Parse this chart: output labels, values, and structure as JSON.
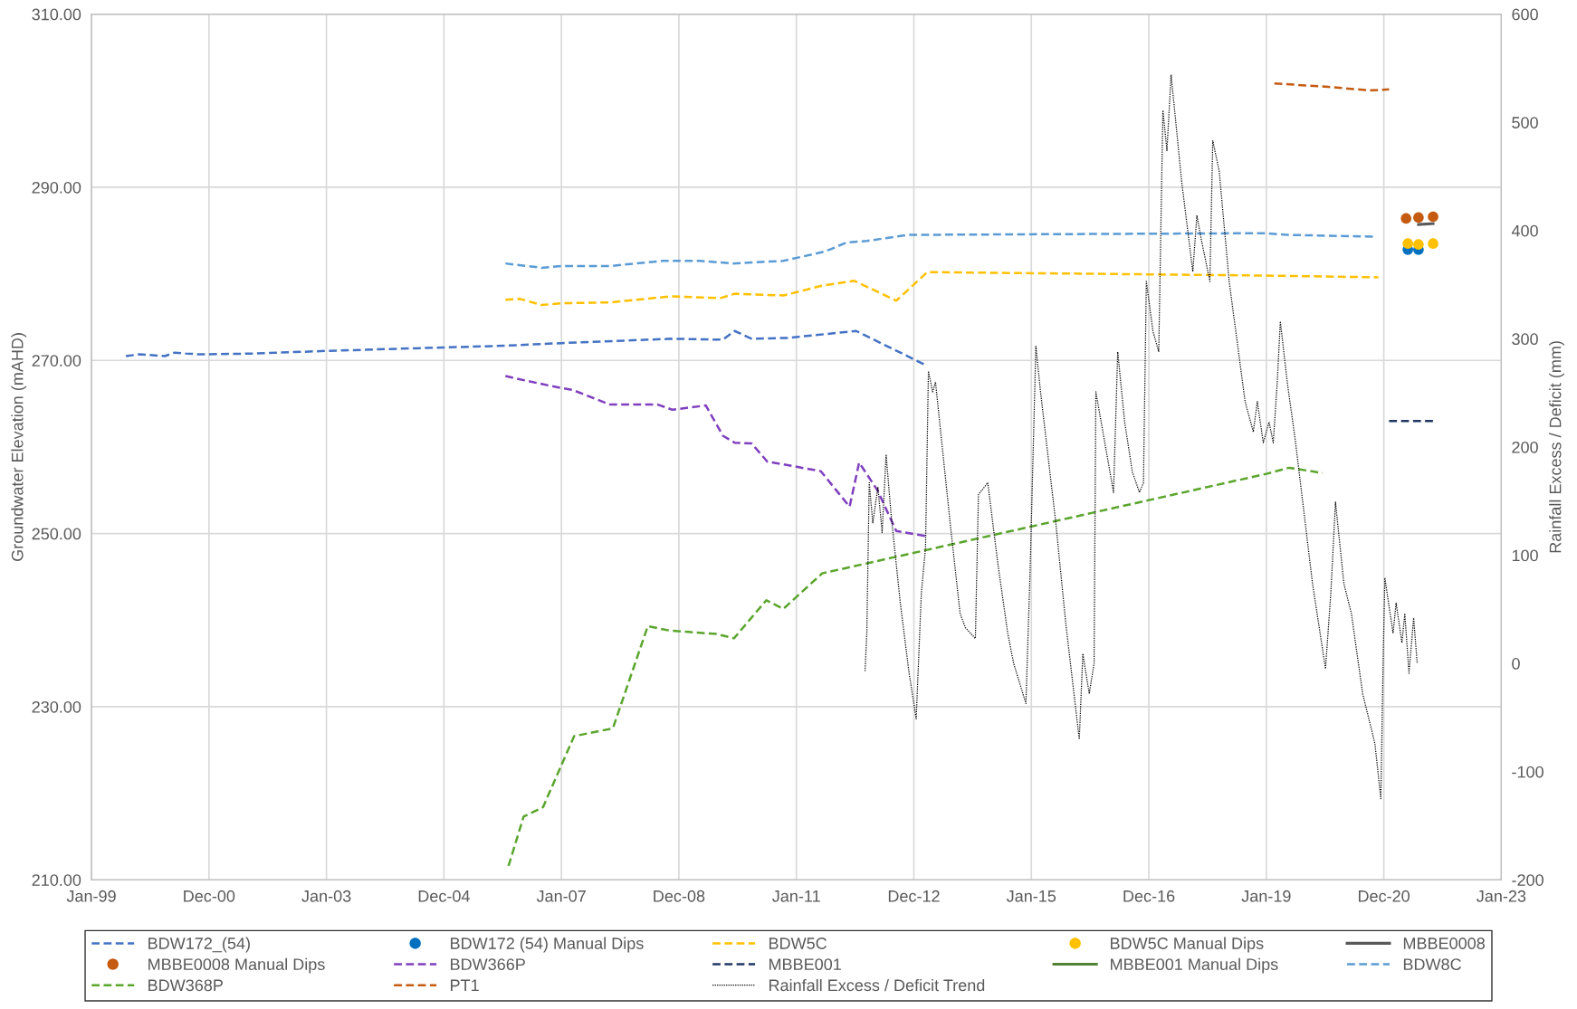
{
  "chart_data": {
    "type": "line",
    "xlabel": null,
    "ylabel": "Groundwater Elevation (mAHD)",
    "y2label": "Rainfall Excess / Deficit (mm)",
    "xlim": [
      "1999-01-01",
      "2023-01-01"
    ],
    "xticks": [
      {
        "value": "1999-01-01",
        "label": "Jan-99"
      },
      {
        "value": "2000-12-31T12:00",
        "label": "Dec-00"
      },
      {
        "value": "2003-01-01",
        "label": "Jan-03"
      },
      {
        "value": "2004-12-31T12:00",
        "label": "Dec-04"
      },
      {
        "value": "2007-01-01",
        "label": "Jan-07"
      },
      {
        "value": "2008-12-31T12:00",
        "label": "Dec-08"
      },
      {
        "value": "2011-01-01",
        "label": "Jan-11"
      },
      {
        "value": "2012-12-31T12:00",
        "label": "Dec-12"
      },
      {
        "value": "2015-01-01",
        "label": "Jan-15"
      },
      {
        "value": "2016-12-31T12:00",
        "label": "Dec-16"
      },
      {
        "value": "2019-01-01",
        "label": "Jan-19"
      },
      {
        "value": "2020-12-31T12:00",
        "label": "Dec-20"
      },
      {
        "value": "2023-01-01",
        "label": "Jan-23"
      }
    ],
    "ylim": [
      210,
      310
    ],
    "yticks": [
      {
        "value": 210,
        "label": "210.00"
      },
      {
        "value": 230,
        "label": "230.00"
      },
      {
        "value": 250,
        "label": "250.00"
      },
      {
        "value": 270,
        "label": "270.00"
      },
      {
        "value": 290,
        "label": "290.00"
      },
      {
        "value": 310,
        "label": "310.00"
      }
    ],
    "y2lim": [
      -200,
      600
    ],
    "y2ticks": [
      -200,
      -100,
      0,
      100,
      200,
      300,
      400,
      500,
      600
    ],
    "grid": true,
    "legend": "bottom",
    "series": [
      {
        "name": "BDW172_(54)",
        "line_style": "dashed",
        "color": "#4472c4",
        "x": [
          "1999-08-03",
          "1999-10-26",
          "2000-04-01",
          "2000-06-02",
          "2000-08-07",
          "2000-11-06",
          "2001-10-19",
          "2003-01-01",
          "2005-01-01",
          "2006-01-18",
          "2007-01-01",
          "2008-11-10",
          "2009-10-01",
          "2009-12-13",
          "2010-03-29",
          "2010-11-06",
          "2012-01-08",
          "2013-03-10"
        ],
        "values": [
          270.5,
          270.7,
          270.5,
          270.9,
          270.8,
          270.7,
          270.8,
          271.1,
          271.5,
          271.7,
          272.0,
          272.5,
          272.4,
          273.4,
          272.5,
          272.6,
          273.4,
          269.5
        ]
      },
      {
        "name": "BDW172 (54) Manual Dips",
        "type": "scatter",
        "marker": "circle",
        "color": "#0070c0",
        "x": [
          "2021-05-30",
          "2021-08-04"
        ],
        "values": [
          282.8,
          282.8
        ]
      },
      {
        "name": "BDW5C",
        "line_style": "dashed",
        "color": "#ffc000",
        "x": [
          "2006-01-18",
          "2006-04-20",
          "2006-08-29",
          "2007-01-01",
          "2007-10-30",
          "2008-11-10",
          "2009-09-16",
          "2009-12-13",
          "2010-10-12",
          "2011-06-02",
          "2011-12-27",
          "2012-09-13",
          "2013-03-25",
          "2019-01-01",
          "2020-11-28"
        ],
        "values": [
          277.0,
          277.1,
          276.4,
          276.6,
          276.7,
          277.4,
          277.2,
          277.7,
          277.5,
          278.6,
          279.2,
          276.9,
          280.2,
          279.8,
          279.6
        ]
      },
      {
        "name": "BDW5C Manual Dips",
        "type": "scatter",
        "marker": "circle",
        "color": "#ffc000",
        "x": [
          "2021-05-30",
          "2021-08-04",
          "2021-11-03"
        ],
        "values": [
          283.5,
          283.4,
          283.5
        ]
      },
      {
        "name": "MBBE0008",
        "type": "line",
        "line_style": "solid",
        "color": "#595959",
        "x": [
          "2021-08-04",
          "2021-11-03"
        ],
        "values": [
          285.7,
          285.8
        ]
      },
      {
        "name": "MBBE0008 Manual Dips",
        "type": "scatter",
        "marker": "circle",
        "color": "#c55a11",
        "x": [
          "2021-05-19",
          "2021-08-04",
          "2021-11-03"
        ],
        "values": [
          286.4,
          286.5,
          286.6
        ]
      },
      {
        "name": "BDW366P",
        "type": "line",
        "line_style": "dashed",
        "color": "#7f3fbf",
        "x": [
          "2006-01-18",
          "2006-04-20",
          "2007-01-01",
          "2007-03-10",
          "2007-10-30",
          "2008-08-22",
          "2008-11-21",
          "2009-06-17",
          "2009-10-01",
          "2009-12-13",
          "2010-03-29",
          "2010-07-05",
          "2010-10-12",
          "2011-06-02",
          "2011-11-28",
          "2012-01-26",
          "2012-05-19",
          "2012-09-13",
          "2013-03-18"
        ],
        "values": [
          268.2,
          267.8,
          266.8,
          266.6,
          264.9,
          264.9,
          264.3,
          264.8,
          261.3,
          260.5,
          260.4,
          258.3,
          258.0,
          257.2,
          253.1,
          258.2,
          255.0,
          250.3,
          249.7
        ]
      },
      {
        "name": "MBBE001",
        "type": "line",
        "line_style": "dashed",
        "color": "#203864",
        "x": [
          "2021-02-02",
          "2021-11-10"
        ],
        "values": [
          263.0,
          263.0
        ]
      },
      {
        "name": "MBBE001 Manual Dips",
        "line_style": "solid",
        "color": "#548235"
      },
      {
        "name": "BDW8C",
        "line_style": "dashed",
        "color": "#5b9bd5",
        "x": [
          "2006-01-18",
          "2006-08-29",
          "2007-01-01",
          "2007-10-30",
          "2008-09-20",
          "2009-05-11",
          "2009-12-02",
          "2010-10-12",
          "2011-07-02",
          "2011-11-06",
          "2012-03-14",
          "2012-11-25",
          "2019-01-01",
          "2019-05-08",
          "2020-11-10"
        ],
        "values": [
          281.2,
          280.7,
          280.9,
          280.9,
          281.5,
          281.5,
          281.2,
          281.5,
          282.6,
          283.6,
          283.8,
          284.5,
          284.7,
          284.5,
          284.3
        ]
      },
      {
        "name": "BDW368P",
        "type": "line",
        "line_style": "dashed",
        "color": "#5aa52c",
        "x": [
          "2006-02-06",
          "2006-05-11",
          "2006-09-09",
          "2007-03-21",
          "2007-11-17",
          "2008-06-21",
          "2008-11-03",
          "2009-08-22",
          "2009-12-09",
          "2010-06-28",
          "2010-10-12",
          "2011-06-10",
          "2019-01-01",
          "2019-05-22",
          "2019-12-16"
        ],
        "values": [
          211.6,
          217.3,
          218.4,
          226.6,
          227.5,
          239.3,
          238.8,
          238.4,
          237.9,
          242.3,
          241.3,
          245.4,
          256.9,
          257.6,
          257.0
        ]
      },
      {
        "name": "PT1",
        "type": "line",
        "line_style": "dashed",
        "color": "#c55a11",
        "x": [
          "2019-02-20",
          "2019-05-08",
          "2020-01-22",
          "2020-07-23",
          "2020-10-19",
          "2021-02-02"
        ],
        "values": [
          302.0,
          301.9,
          301.6,
          301.3,
          301.2,
          301.3
        ]
      },
      {
        "name": "Rainfall Excess / Deficit Trend",
        "type": "line",
        "line_style": "dotted",
        "axis": "y2",
        "color": "#000000",
        "x": [
          "2012-03-03",
          "2012-03-14",
          "2012-03-29",
          "2012-04-20",
          "2012-05-22",
          "2012-06-17",
          "2012-07-12",
          "2012-08-11",
          "2012-10-08",
          "2012-12-02",
          "2013-01-15",
          "2013-02-16",
          "2013-03-14",
          "2013-04-01",
          "2013-04-27",
          "2013-05-15",
          "2013-08-14",
          "2013-10-15",
          "2013-11-17",
          "2014-01-18",
          "2014-02-06",
          "2014-04-05",
          "2014-06-06",
          "2014-08-07",
          "2014-09-13",
          "2014-11-28",
          "2014-12-24",
          "2015-01-29",
          "2015-02-27",
          "2015-06-02",
          "2015-08-03",
          "2015-10-26",
          "2015-11-17",
          "2015-12-27",
          "2016-01-26",
          "2016-02-06",
          "2016-03-10",
          "2016-04-23",
          "2016-05-26",
          "2016-06-21",
          "2016-08-03",
          "2016-09-20",
          "2016-11-03",
          "2016-11-28",
          "2016-12-16",
          "2017-01-26",
          "2017-03-03",
          "2017-03-29",
          "2017-04-23",
          "2017-05-19",
          "2017-07-23",
          "2017-10-01",
          "2017-10-26",
          "2017-11-25",
          "2018-01-15",
          "2018-02-02",
          "2018-03-14",
          "2018-05-15",
          "2018-08-22",
          "2018-10-12",
          "2018-11-06",
          "2018-12-13",
          "2019-01-18",
          "2019-02-13",
          "2019-03-10",
          "2019-03-29",
          "2019-05-11",
          "2019-07-02",
          "2019-10-15",
          "2020-01-04",
          "2020-02-06",
          "2020-03-06",
          "2020-04-27",
          "2020-06-13",
          "2020-08-22",
          "2020-11-06",
          "2020-12-13",
          "2020-12-27",
          "2021-01-07",
          "2021-02-27",
          "2021-03-18",
          "2021-04-23",
          "2021-05-11",
          "2021-06-06",
          "2021-07-05",
          "2021-07-27"
        ],
        "values": [
          -7,
          28,
          167,
          130,
          163,
          121,
          193,
          139,
          56,
          -9,
          -51,
          65,
          107,
          270,
          251,
          260,
          130,
          46,
          33,
          23,
          156,
          167,
          93,
          28,
          0,
          -37,
          84,
          293,
          251,
          130,
          37,
          -70,
          9,
          -28,
          0,
          251,
          223,
          186,
          158,
          288,
          223,
          177,
          158,
          167,
          353,
          307,
          288,
          511,
          474,
          544,
          446,
          362,
          414,
          390,
          353,
          483,
          455,
          353,
          242,
          214,
          242,
          204,
          223,
          204,
          260,
          316,
          260,
          204,
          74,
          -5,
          65,
          149,
          74,
          46,
          -28,
          -74,
          -125,
          0,
          79,
          28,
          56,
          19,
          46,
          -9,
          42,
          0
        ]
      }
    ]
  }
}
